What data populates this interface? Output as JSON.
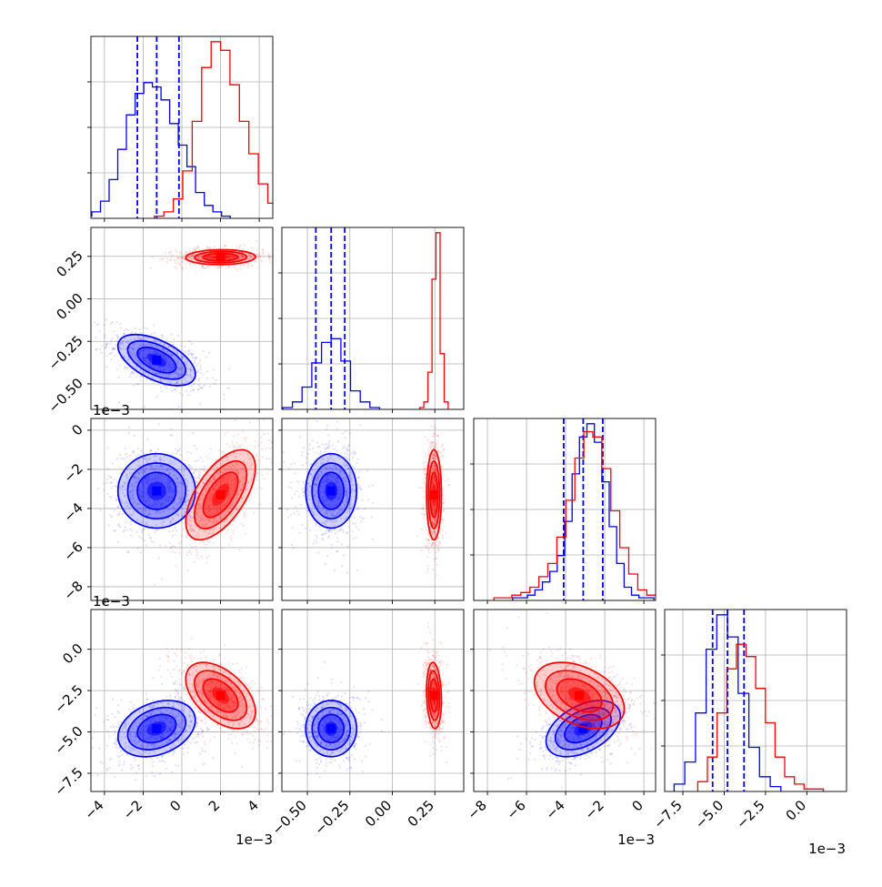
{
  "chart_data": {
    "type": "corner",
    "grid": true,
    "series_colors": {
      "blue": "#0000ff",
      "red": "#ff0000"
    },
    "quantile_lines": "dashed-blue",
    "exponent_labels": {
      "x0": "1e−3",
      "x2": "1e−3",
      "x3": "1e−3",
      "y2": "1e−3",
      "y3": "1e−3"
    },
    "params": [
      {
        "range": [
          -4.7,
          4.7
        ],
        "ticks": [
          -4,
          -2,
          0,
          2,
          4
        ],
        "tick_labels": [
          "−4",
          "−2",
          "0",
          "2",
          "4"
        ]
      },
      {
        "range": [
          -0.65,
          0.42
        ],
        "ticks": [
          -0.5,
          -0.25,
          0.0,
          0.25
        ],
        "tick_labels": [
          "−0.50",
          "−0.25",
          "0.00",
          "0.25"
        ]
      },
      {
        "range": [
          -8.7,
          0.6
        ],
        "ticks": [
          -8,
          -6,
          -4,
          -2,
          0
        ],
        "tick_labels": [
          "−8",
          "−6",
          "−4",
          "−2",
          "0"
        ]
      },
      {
        "range": [
          -8.6,
          2.4
        ],
        "ticks": [
          -7.5,
          -5.0,
          -2.5,
          0.0
        ],
        "tick_labels": [
          "−7.5",
          "−5.0",
          "−2.5",
          "0.0"
        ]
      }
    ],
    "series": [
      {
        "color": "#0000ff",
        "means": [
          -1.3,
          -0.36,
          -3.1,
          -4.8
        ],
        "sds": [
          1.0,
          0.075,
          0.95,
          0.85
        ],
        "corr": [
          [
            0,
            1,
            -0.55
          ],
          [
            0,
            2,
            0.0
          ],
          [
            0,
            3,
            0.3
          ],
          [
            1,
            2,
            0.0
          ],
          [
            1,
            3,
            0.0
          ],
          [
            2,
            3,
            0.45
          ]
        ],
        "quantiles": [
          [
            -2.3,
            -1.3,
            -0.15
          ],
          [
            -0.45,
            -0.36,
            -0.28
          ],
          [
            -4.1,
            -3.1,
            -2.1
          ],
          [
            -5.7,
            -4.8,
            -3.8
          ]
        ],
        "hist_counts": [
          [
            1,
            3,
            8,
            18,
            32,
            48,
            58,
            63,
            61,
            55,
            44,
            34,
            24,
            12,
            6,
            3,
            1
          ],
          [
            1,
            4,
            12,
            25,
            36,
            38,
            26,
            10,
            4,
            1
          ],
          [
            1,
            1,
            2,
            4,
            7,
            11,
            17,
            30,
            48,
            62,
            67,
            60,
            45,
            28,
            14,
            5,
            2,
            1,
            1
          ],
          [
            3,
            12,
            32,
            58,
            72,
            63,
            40,
            18,
            6,
            2
          ]
        ]
      },
      {
        "color": "#ff0000",
        "means": [
          2.0,
          0.245,
          -3.3,
          -2.8
        ],
        "sds": [
          0.9,
          0.022,
          1.15,
          1.0
        ],
        "corr": [
          [
            0,
            1,
            0.05
          ],
          [
            0,
            2,
            0.6
          ],
          [
            0,
            3,
            -0.5
          ],
          [
            1,
            2,
            0.0
          ],
          [
            1,
            3,
            -0.15
          ],
          [
            2,
            3,
            -0.4
          ]
        ],
        "hist_counts": [
          [
            1,
            3,
            9,
            22,
            45,
            70,
            82,
            78,
            62,
            45,
            30,
            16,
            7,
            2
          ],
          [
            1,
            4,
            20,
            70,
            95,
            30,
            4
          ],
          [
            1,
            1,
            2,
            3,
            5,
            9,
            14,
            24,
            38,
            54,
            64,
            62,
            50,
            34,
            20,
            10,
            4,
            2,
            1
          ],
          [
            4,
            14,
            32,
            50,
            60,
            55,
            42,
            28,
            14,
            6,
            3,
            1,
            1
          ]
        ]
      }
    ]
  }
}
